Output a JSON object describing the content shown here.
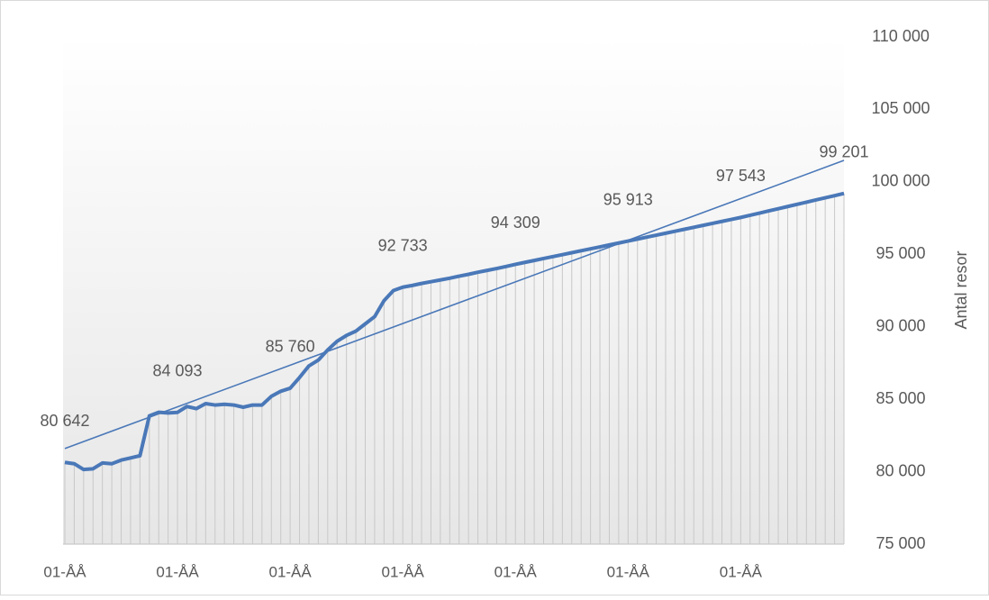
{
  "chart_data": {
    "type": "line",
    "y_label": "Antal resor",
    "categories": [
      "01-ÅÅ",
      null,
      null,
      null,
      null,
      null,
      null,
      null,
      null,
      null,
      null,
      null,
      "01-ÅÅ",
      null,
      null,
      null,
      null,
      null,
      null,
      null,
      null,
      null,
      null,
      null,
      "01-ÅÅ",
      null,
      null,
      null,
      null,
      null,
      null,
      null,
      null,
      null,
      null,
      null,
      "01-ÅÅ",
      null,
      null,
      null,
      null,
      null,
      null,
      null,
      null,
      null,
      null,
      null,
      "01-ÅÅ",
      null,
      null,
      null,
      null,
      null,
      null,
      null,
      null,
      null,
      null,
      null,
      "01-ÅÅ",
      null,
      null,
      null,
      null,
      null,
      null,
      null,
      null,
      null,
      null,
      null,
      "01-ÅÅ",
      null,
      null,
      null,
      null,
      null,
      null,
      null,
      null,
      null,
      null,
      null
    ],
    "series": [
      {
        "color": "#4a78b8",
        "values": [
          80642,
          80550,
          80150,
          80200,
          80600,
          80550,
          80800,
          80950,
          81100,
          83850,
          84100,
          84050,
          84093,
          84500,
          84350,
          84700,
          84600,
          84650,
          84600,
          84450,
          84600,
          84600,
          85200,
          85550,
          85760,
          86500,
          87300,
          87700,
          88400,
          89000,
          89400,
          89700,
          90200,
          90700,
          91800,
          92500,
          92733,
          92850,
          92990,
          93110,
          93230,
          93350,
          93490,
          93620,
          93760,
          93890,
          94020,
          94160,
          94309,
          94443,
          94576,
          94710,
          94844,
          94977,
          95111,
          95245,
          95378,
          95512,
          95646,
          95779,
          95913,
          96049,
          96185,
          96321,
          96456,
          96592,
          96728,
          96864,
          97000,
          97136,
          97271,
          97407,
          97543,
          97694,
          97845,
          97995,
          98146,
          98297,
          98447,
          98598,
          98749,
          98900,
          99050,
          99201
        ],
        "value_labels": [
          "80 642",
          null,
          null,
          null,
          null,
          null,
          null,
          null,
          null,
          null,
          null,
          null,
          "84 093",
          null,
          null,
          null,
          null,
          null,
          null,
          null,
          null,
          null,
          null,
          null,
          "85 760",
          null,
          null,
          null,
          null,
          null,
          null,
          null,
          null,
          null,
          null,
          null,
          "92 733",
          null,
          null,
          null,
          null,
          null,
          null,
          null,
          null,
          null,
          null,
          null,
          "94 309",
          null,
          null,
          null,
          null,
          null,
          null,
          null,
          null,
          null,
          null,
          null,
          "95 913",
          null,
          null,
          null,
          null,
          null,
          null,
          null,
          null,
          null,
          null,
          null,
          "97 543",
          null,
          null,
          null,
          null,
          null,
          null,
          null,
          null,
          null,
          null,
          "99 201"
        ]
      }
    ],
    "trendline": {
      "color": "#4a78b8",
      "values": [
        81600,
        101480
      ]
    },
    "ylim": [
      75000,
      110000
    ],
    "yticks": [
      {
        "value": 75000,
        "label": "75 000"
      },
      {
        "value": 80000,
        "label": "80 000"
      },
      {
        "value": 85000,
        "label": "85 000"
      },
      {
        "value": 90000,
        "label": "90 000"
      },
      {
        "value": 95000,
        "label": "95 000"
      },
      {
        "value": 100000,
        "label": "100 000"
      },
      {
        "value": 105000,
        "label": "105 000"
      },
      {
        "value": 110000,
        "label": "110 000"
      }
    ],
    "drop_lines": true
  }
}
